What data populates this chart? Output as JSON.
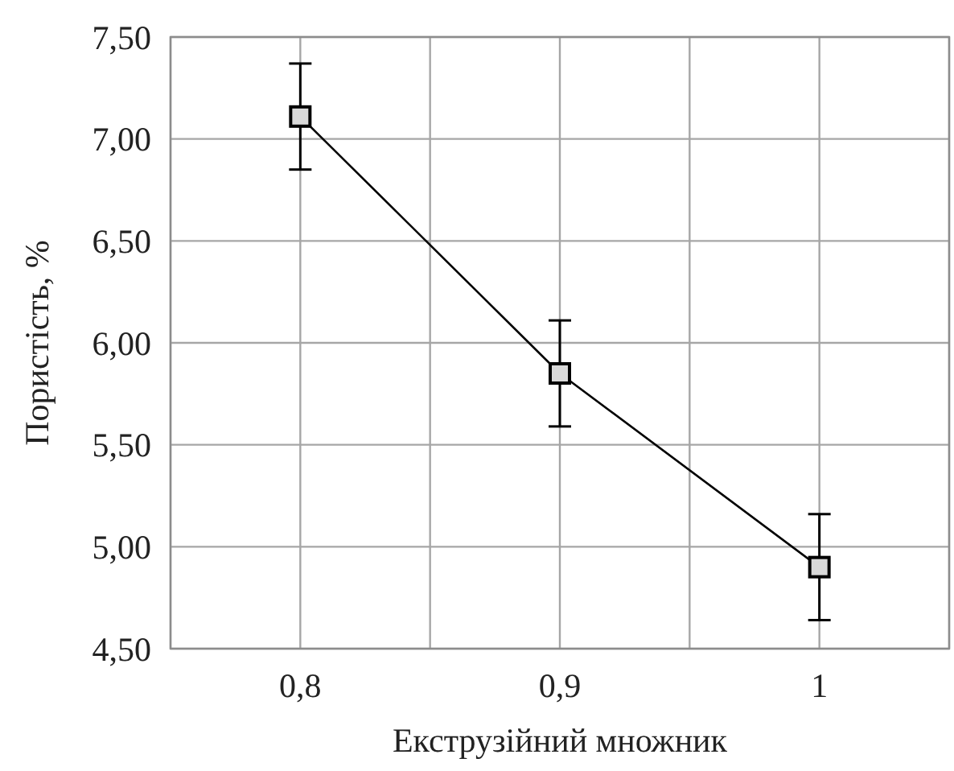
{
  "chart_data": {
    "type": "line",
    "xlabel": "Екструзійний множник",
    "ylabel": "Пористість, %",
    "x": [
      0.8,
      0.9,
      1
    ],
    "series": [
      {
        "color": "#000000",
        "values": [
          7.11,
          5.85,
          4.9
        ],
        "errors": [
          0.26,
          0.26,
          0.26
        ]
      }
    ],
    "xlim": [
      0.75,
      1.05
    ],
    "xticks": [
      {
        "value": 0.75,
        "label": null
      },
      {
        "value": 0.8,
        "label": "0,8"
      },
      {
        "value": 0.85,
        "label": null
      },
      {
        "value": 0.9,
        "label": "0,9"
      },
      {
        "value": 0.95,
        "label": null
      },
      {
        "value": 1,
        "label": "1"
      },
      {
        "value": 1.05,
        "label": null
      }
    ],
    "ylim": [
      4.5,
      7.5
    ],
    "yticks": [
      {
        "value": 4.5,
        "label": "4,50"
      },
      {
        "value": 5,
        "label": "5,00"
      },
      {
        "value": 5.5,
        "label": "5,50"
      },
      {
        "value": 6,
        "label": "6,00"
      },
      {
        "value": 6.5,
        "label": "6,50"
      },
      {
        "value": 7,
        "label": "7,00"
      },
      {
        "value": 7.5,
        "label": "7,50"
      }
    ],
    "grid": true,
    "marker": "square",
    "line_style": "solid"
  }
}
